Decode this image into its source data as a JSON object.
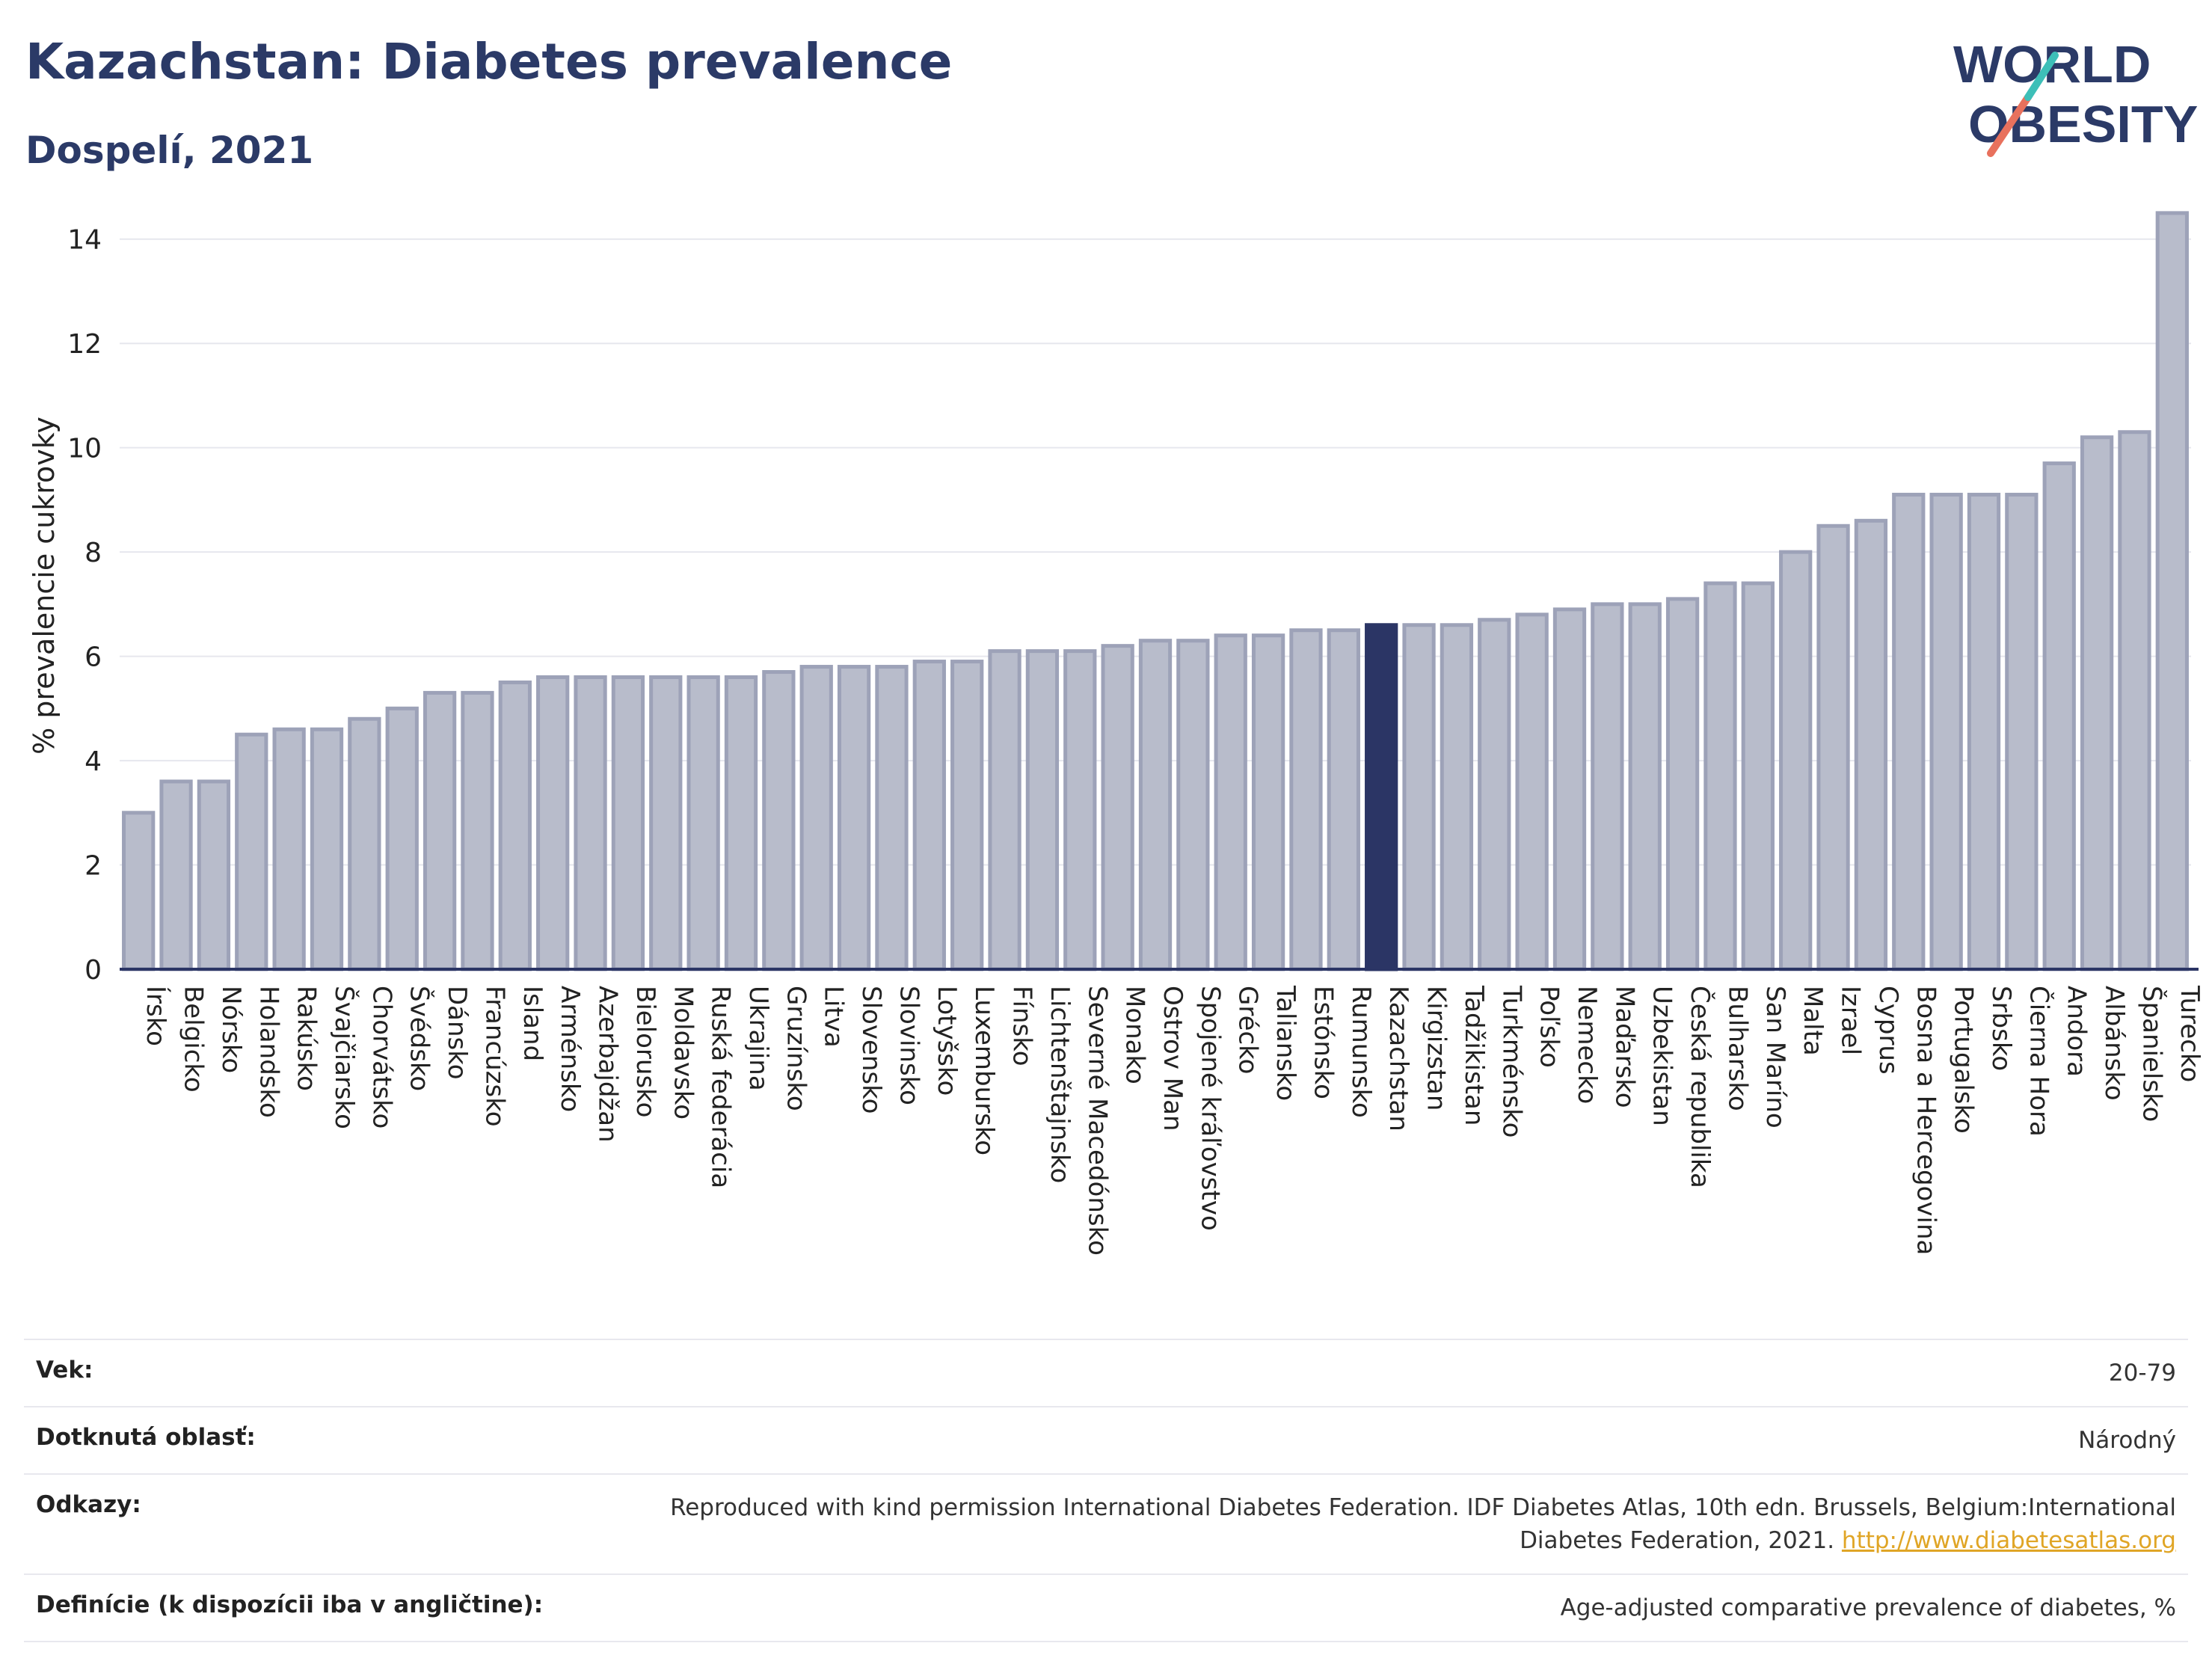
{
  "header": {
    "title": "Kazachstan: Diabetes prevalence",
    "subtitle": "Dospelí, 2021"
  },
  "logo": {
    "line1": "WORLD",
    "line2": "OBESITY"
  },
  "colors": {
    "bar": "#b8bccb",
    "bar_stroke": "#9da2b8",
    "highlight": "#2b3565",
    "title": "#2b3a67",
    "link": "#e0a526"
  },
  "chart_data": {
    "type": "bar",
    "title": "Kazachstan: Diabetes prevalence",
    "subtitle": "Dospelí, 2021",
    "ylabel": "% prevalencie cukrovky",
    "xlabel": "",
    "ylim": [
      0,
      15
    ],
    "yticks": [
      0,
      2,
      4,
      6,
      8,
      10,
      12,
      14
    ],
    "grid": true,
    "highlight": "Kazachstan",
    "categories": [
      "Írsko",
      "Belgicko",
      "Nórsko",
      "Holandsko",
      "Rakúsko",
      "Švajčiarsko",
      "Chorvátsko",
      "Švédsko",
      "Dánsko",
      "Francúzsko",
      "Island",
      "Arménsko",
      "Azerbajdžan",
      "Bielorusko",
      "Moldavsko",
      "Ruská federácia",
      "Ukrajina",
      "Gruzínsko",
      "Litva",
      "Slovensko",
      "Slovinsko",
      "Lotyšsko",
      "Luxembursko",
      "Fínsko",
      "Lichtenštajnsko",
      "Severné Macedónsko",
      "Monako",
      "Ostrov Man",
      "Spojené kráľovstvo",
      "Grécko",
      "Taliansko",
      "Estónsko",
      "Rumunsko",
      "Kazachstan",
      "Kirgizstan",
      "Tadžikistan",
      "Turkménsko",
      "Poľsko",
      "Nemecko",
      "Maďarsko",
      "Uzbekistan",
      "Česká republika",
      "Bulharsko",
      "San Maríno",
      "Malta",
      "Izrael",
      "Cyprus",
      "Bosna a Hercegovina",
      "Portugalsko",
      "Srbsko",
      "Čierna Hora",
      "Andora",
      "Albánsko",
      "Španielsko",
      "Turecko"
    ],
    "values": [
      3.0,
      3.6,
      3.6,
      4.5,
      4.6,
      4.6,
      4.8,
      5.0,
      5.3,
      5.3,
      5.5,
      5.6,
      5.6,
      5.6,
      5.6,
      5.6,
      5.6,
      5.7,
      5.8,
      5.8,
      5.8,
      5.9,
      5.9,
      6.1,
      6.1,
      6.1,
      6.2,
      6.3,
      6.3,
      6.4,
      6.4,
      6.5,
      6.5,
      6.6,
      6.6,
      6.6,
      6.7,
      6.8,
      6.9,
      7.0,
      7.0,
      7.1,
      7.4,
      7.4,
      8.0,
      8.5,
      8.6,
      9.1,
      9.1,
      9.1,
      9.1,
      9.7,
      10.2,
      10.3,
      14.5
    ]
  },
  "info": [
    {
      "label": "Vek:",
      "value": "20-79"
    },
    {
      "label": "Dotknutá oblasť:",
      "value": "Národný"
    },
    {
      "label": "Odkazy:",
      "value": "Reproduced with kind permission International Diabetes Federation.  IDF Diabetes Atlas, 10th edn. Brussels, Belgium:International Diabetes Federation, 2021. ",
      "link": "http://www.diabetesatlas.org"
    },
    {
      "label": "Definície (k dispozícii iba v angličtine):",
      "value": "Age-adjusted comparative prevalence of diabetes, %"
    }
  ]
}
